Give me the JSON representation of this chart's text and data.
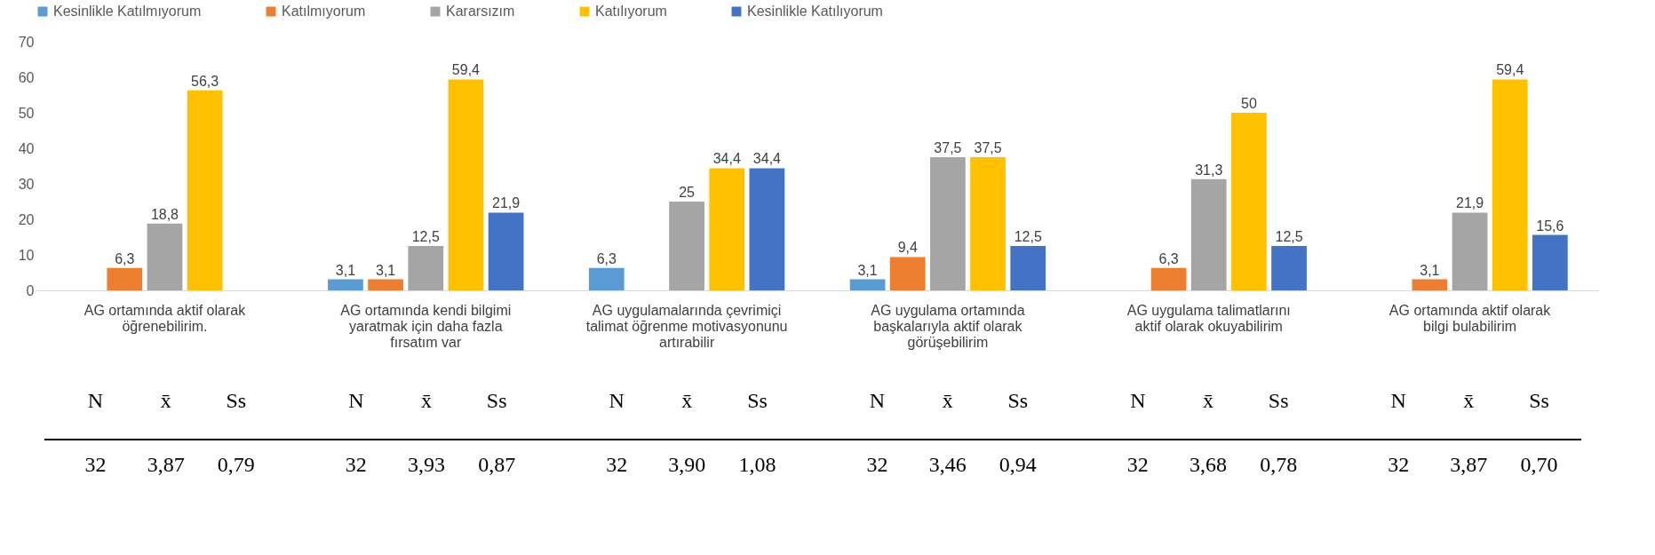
{
  "chart_data": {
    "type": "bar",
    "categories": [
      "AG ortamında aktif olarak öğrenebilirim.",
      "AG ortamında kendi bilgimi yaratmak için daha fazla fırsatım var",
      "AG uygulamalarında çevrimiçi talimat öğrenme motivasyonunu artırabilir",
      "AG uygulama ortamında başkalarıyla aktif olarak görüşebilirim",
      "AG uygulama talimatlarını aktif olarak okuyabilirim",
      "AG ortamında aktif olarak bilgi bulabilirim"
    ],
    "series": [
      {
        "name": "Kesinlikle Katılmıyorum",
        "color": "#5b9bd5",
        "values": [
          null,
          3.1,
          6.3,
          3.1,
          null,
          null
        ],
        "value_labels": [
          null,
          "3,1",
          "6,3",
          "3,1",
          null,
          null
        ]
      },
      {
        "name": "Katılmıyorum",
        "color": "#ed7d31",
        "values": [
          6.3,
          3.1,
          null,
          9.4,
          6.3,
          3.1
        ],
        "value_labels": [
          "6,3",
          "3,1",
          null,
          "9,4",
          "6,3",
          "3,1"
        ]
      },
      {
        "name": "Kararsızım",
        "color": "#a5a5a5",
        "values": [
          18.8,
          12.5,
          25,
          37.5,
          31.3,
          21.9
        ],
        "value_labels": [
          "18,8",
          "12,5",
          "25",
          "37,5",
          "31,3",
          "21,9"
        ]
      },
      {
        "name": "Katılıyorum",
        "color": "#ffc000",
        "values": [
          56.3,
          59.4,
          34.4,
          37.5,
          50,
          59.4
        ],
        "value_labels": [
          "56,3",
          "59,4",
          "34,4",
          "37,5",
          "50",
          "59,4"
        ]
      },
      {
        "name": "Kesinlikle Katılıyorum",
        "color": "#4472c4",
        "values": [
          null,
          21.9,
          34.4,
          12.5,
          12.5,
          15.6
        ],
        "value_labels": [
          null,
          "21,9",
          "34,4",
          "12,5",
          "12,5",
          "15,6"
        ]
      }
    ],
    "ylim": [
      0,
      70
    ],
    "yticks": [
      0,
      10,
      20,
      30,
      40,
      50,
      60,
      70
    ],
    "grid": false,
    "legend": "top",
    "annotations": [
      "N",
      "x̄",
      "Ss",
      "N",
      "x̄",
      "Ss",
      "N",
      "x̄",
      "Ss",
      "N",
      "x̄",
      "Ss",
      "N",
      "x̄",
      "Ss",
      "N",
      "x̄",
      "Ss",
      "32",
      "3,87",
      "0,79",
      "32",
      "3,93",
      "0,87",
      "32",
      "3,90",
      "1,08",
      "32",
      "3,46",
      "0,94",
      "32",
      "3,68",
      "0,78",
      "32",
      "3,87",
      "0,70"
    ]
  }
}
